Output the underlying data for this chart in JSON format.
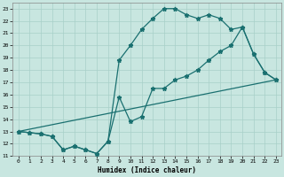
{
  "xlabel": "Humidex (Indice chaleur)",
  "background_color": "#c8e6e0",
  "line_color": "#1a7070",
  "grid_color": "#a8d0c8",
  "line1_x": [
    0,
    1,
    2,
    3,
    4,
    5,
    6,
    7,
    8,
    9,
    10,
    11,
    12,
    13,
    14,
    15,
    16,
    17,
    18,
    19,
    20,
    21,
    22,
    23
  ],
  "line1_y": [
    13,
    12.9,
    12.8,
    12.6,
    11.5,
    11.8,
    11.5,
    11.2,
    12.2,
    15.8,
    13.8,
    14.2,
    16.5,
    16.5,
    17.2,
    17.5,
    18.0,
    18.8,
    19.5,
    20.0,
    21.5,
    19.3,
    17.8,
    17.2
  ],
  "line2_x": [
    0,
    1,
    2,
    3,
    4,
    5,
    6,
    7,
    8,
    9,
    10,
    11,
    12,
    13,
    14,
    15,
    16,
    17,
    18,
    19,
    20,
    21,
    22,
    23
  ],
  "line2_y": [
    13,
    12.9,
    12.8,
    12.6,
    11.5,
    11.8,
    11.5,
    11.2,
    12.2,
    18.8,
    20.0,
    21.3,
    22.2,
    23.0,
    23.0,
    22.5,
    22.2,
    22.5,
    22.2,
    21.3,
    21.5,
    19.3,
    17.8,
    17.2
  ],
  "line3_x": [
    0,
    23
  ],
  "line3_y": [
    13,
    17.2
  ],
  "xlim": [
    -0.5,
    23.5
  ],
  "ylim": [
    11,
    23.5
  ],
  "yticks": [
    11,
    12,
    13,
    14,
    15,
    16,
    17,
    18,
    19,
    20,
    21,
    22,
    23
  ],
  "xticks": [
    0,
    1,
    2,
    3,
    4,
    5,
    6,
    7,
    8,
    9,
    10,
    11,
    12,
    13,
    14,
    15,
    16,
    17,
    18,
    19,
    20,
    21,
    22,
    23
  ]
}
